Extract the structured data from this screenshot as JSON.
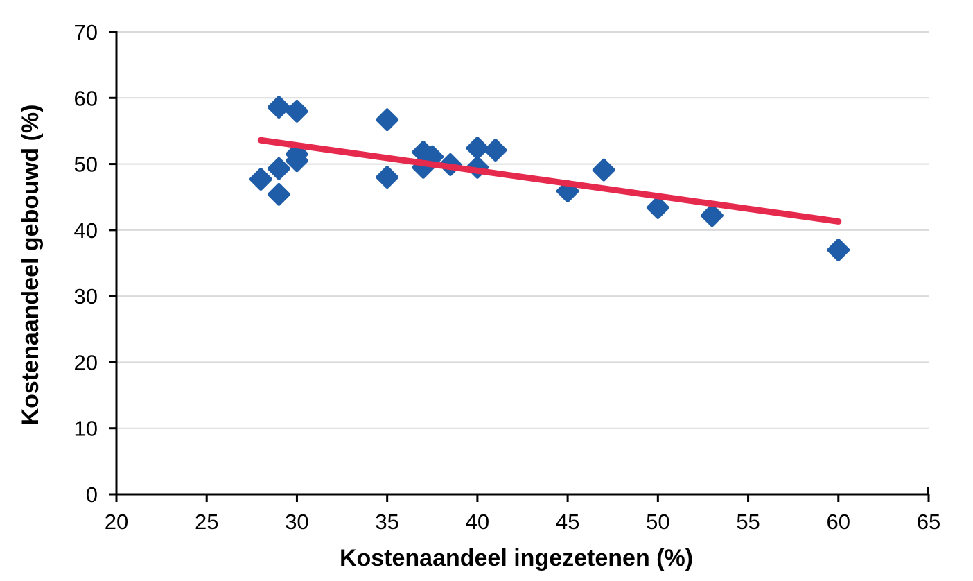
{
  "chart_data": {
    "type": "scatter",
    "title": "",
    "xlabel": "Kostenaandeel ingezetenen (%)",
    "ylabel": "Kostenaandeel gebouwd (%)",
    "xlim": [
      20,
      65
    ],
    "ylim": [
      0,
      70
    ],
    "x_ticks": [
      20,
      25,
      30,
      35,
      40,
      45,
      50,
      55,
      60,
      65
    ],
    "y_ticks": [
      0,
      10,
      20,
      30,
      40,
      50,
      60,
      70
    ],
    "grid": "horizontal-only",
    "legend_position": "none",
    "marker_shape": "diamond",
    "points": [
      {
        "x": 28,
        "y": 47.7
      },
      {
        "x": 29,
        "y": 58.6
      },
      {
        "x": 29,
        "y": 49.3
      },
      {
        "x": 29,
        "y": 45.4
      },
      {
        "x": 30,
        "y": 58.0
      },
      {
        "x": 30,
        "y": 51.5
      },
      {
        "x": 30,
        "y": 50.5
      },
      {
        "x": 35,
        "y": 56.7
      },
      {
        "x": 35,
        "y": 48.0
      },
      {
        "x": 37,
        "y": 51.8
      },
      {
        "x": 37.5,
        "y": 51.1
      },
      {
        "x": 37,
        "y": 49.5
      },
      {
        "x": 38.5,
        "y": 49.9
      },
      {
        "x": 40,
        "y": 52.4
      },
      {
        "x": 41,
        "y": 52.1
      },
      {
        "x": 40,
        "y": 49.5
      },
      {
        "x": 45,
        "y": 45.9
      },
      {
        "x": 47,
        "y": 49.1
      },
      {
        "x": 50,
        "y": 43.4
      },
      {
        "x": 53,
        "y": 42.2
      },
      {
        "x": 60,
        "y": 37.0
      }
    ],
    "trendline": {
      "x1": 28,
      "y1": 53.6,
      "x2": 60,
      "y2": 41.3
    },
    "colors": {
      "marker": "#1f5da8",
      "trend": "#e52a4d",
      "grid": "#d9d9d9",
      "axis": "#000000",
      "text": "#000000",
      "background": "#ffffff"
    }
  }
}
